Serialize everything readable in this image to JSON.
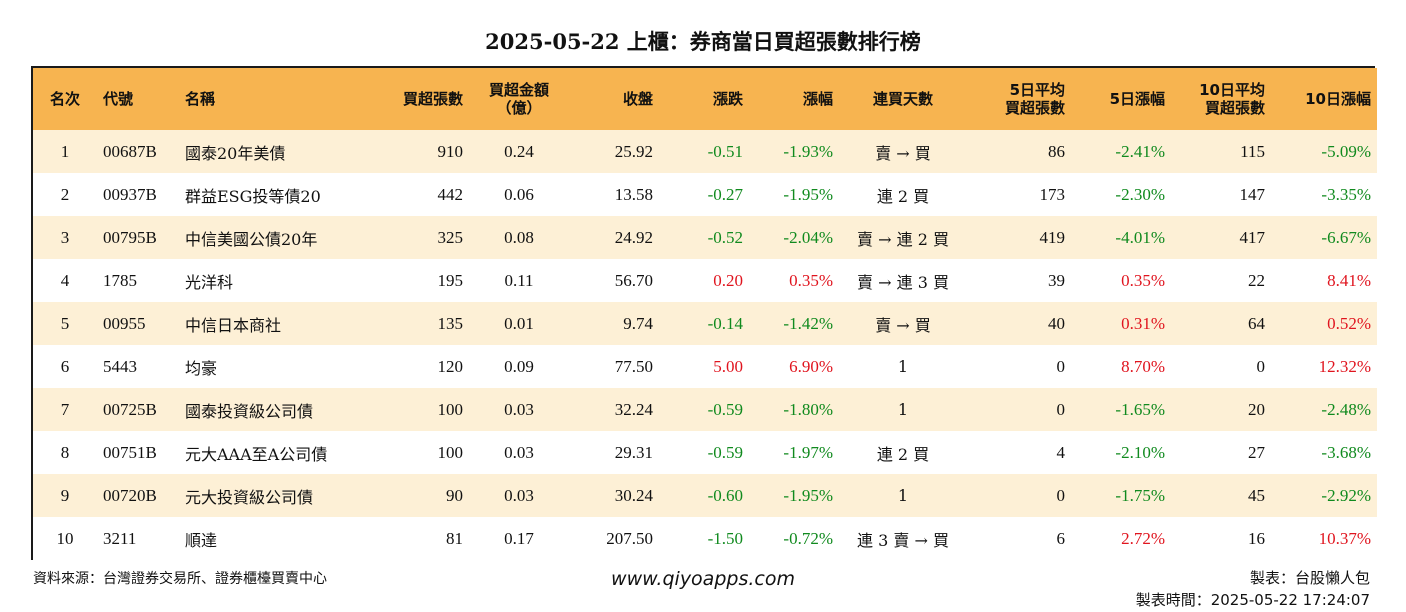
{
  "title": "2025-05-22 上櫃：券商當日買超張數排行榜",
  "columns": [
    "名次",
    "代號",
    "名稱",
    "買超張數",
    "買超金額\n（億）",
    "收盤",
    "漲跌",
    "漲幅",
    "連買天數",
    "5日平均\n買超張數",
    "5日漲幅",
    "10日平均\n買超張數",
    "10日漲幅"
  ],
  "rows": [
    {
      "rank": "1",
      "code": "00687B",
      "name": "國泰20年美債",
      "buy_lots": "910",
      "buy_amount": "0.24",
      "close": "25.92",
      "change": "-0.51",
      "pct": "-1.93%",
      "streak": "賣 → 買",
      "avg5": "86",
      "pct5": "-2.41%",
      "avg10": "115",
      "pct10": "-5.09%"
    },
    {
      "rank": "2",
      "code": "00937B",
      "name": "群益ESG投等債20",
      "buy_lots": "442",
      "buy_amount": "0.06",
      "close": "13.58",
      "change": "-0.27",
      "pct": "-1.95%",
      "streak": "連 2 買",
      "avg5": "173",
      "pct5": "-2.30%",
      "avg10": "147",
      "pct10": "-3.35%"
    },
    {
      "rank": "3",
      "code": "00795B",
      "name": "中信美國公債20年",
      "buy_lots": "325",
      "buy_amount": "0.08",
      "close": "24.92",
      "change": "-0.52",
      "pct": "-2.04%",
      "streak": "賣 → 連 2 買",
      "avg5": "419",
      "pct5": "-4.01%",
      "avg10": "417",
      "pct10": "-6.67%"
    },
    {
      "rank": "4",
      "code": "1785",
      "name": "光洋科",
      "buy_lots": "195",
      "buy_amount": "0.11",
      "close": "56.70",
      "change": "0.20",
      "pct": "0.35%",
      "streak": "賣 → 連 3 買",
      "avg5": "39",
      "pct5": "0.35%",
      "avg10": "22",
      "pct10": "8.41%"
    },
    {
      "rank": "5",
      "code": "00955",
      "name": "中信日本商社",
      "buy_lots": "135",
      "buy_amount": "0.01",
      "close": "9.74",
      "change": "-0.14",
      "pct": "-1.42%",
      "streak": "賣 → 買",
      "avg5": "40",
      "pct5": "0.31%",
      "avg10": "64",
      "pct10": "0.52%"
    },
    {
      "rank": "6",
      "code": "5443",
      "name": "均豪",
      "buy_lots": "120",
      "buy_amount": "0.09",
      "close": "77.50",
      "change": "5.00",
      "pct": "6.90%",
      "streak": "1",
      "avg5": "0",
      "pct5": "8.70%",
      "avg10": "0",
      "pct10": "12.32%"
    },
    {
      "rank": "7",
      "code": "00725B",
      "name": "國泰投資級公司債",
      "buy_lots": "100",
      "buy_amount": "0.03",
      "close": "32.24",
      "change": "-0.59",
      "pct": "-1.80%",
      "streak": "1",
      "avg5": "0",
      "pct5": "-1.65%",
      "avg10": "20",
      "pct10": "-2.48%"
    },
    {
      "rank": "8",
      "code": "00751B",
      "name": "元大AAA至A公司債",
      "buy_lots": "100",
      "buy_amount": "0.03",
      "close": "29.31",
      "change": "-0.59",
      "pct": "-1.97%",
      "streak": "連 2 買",
      "avg5": "4",
      "pct5": "-2.10%",
      "avg10": "27",
      "pct10": "-3.68%"
    },
    {
      "rank": "9",
      "code": "00720B",
      "name": "元大投資級公司債",
      "buy_lots": "90",
      "buy_amount": "0.03",
      "close": "30.24",
      "change": "-0.60",
      "pct": "-1.95%",
      "streak": "1",
      "avg5": "0",
      "pct5": "-1.75%",
      "avg10": "45",
      "pct10": "-2.92%"
    },
    {
      "rank": "10",
      "code": "3211",
      "name": "順達",
      "buy_lots": "81",
      "buy_amount": "0.17",
      "close": "207.50",
      "change": "-1.50",
      "pct": "-0.72%",
      "streak": "連 3 賣 → 買",
      "avg5": "6",
      "pct5": "2.72%",
      "avg10": "16",
      "pct10": "10.37%"
    }
  ],
  "footer": {
    "source": "資料來源：台灣證券交易所、證券櫃檯買賣中心",
    "website": "www.qiyoapps.com",
    "author": "製表：台股懶人包",
    "made_time": "製表時間：2025-05-22 17:24:07"
  },
  "colors": {
    "header_bg": "#f7b450",
    "row_alt_bg": "#fdf0d6",
    "up": "#e0141e",
    "down": "#108a1e"
  }
}
